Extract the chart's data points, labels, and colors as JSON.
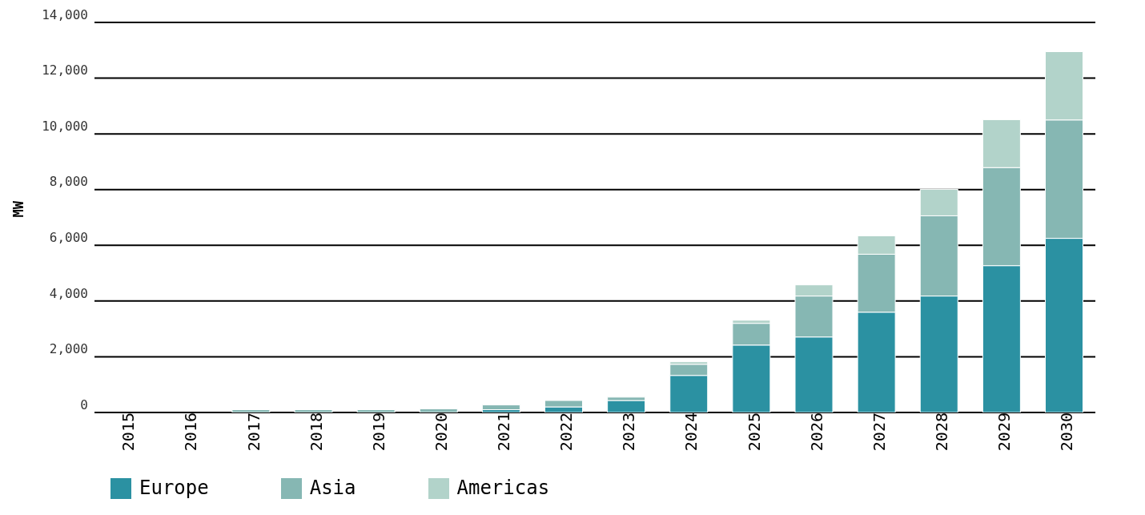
{
  "chart_data": {
    "type": "bar",
    "stacked": true,
    "ylabel": "MW",
    "categories": [
      "2015",
      "2016",
      "2017",
      "2018",
      "2019",
      "2020",
      "2021",
      "2022",
      "2023",
      "2024",
      "2025",
      "2026",
      "2027",
      "2028",
      "2029",
      "2030"
    ],
    "series": [
      {
        "name": "Europe",
        "color": "#2b91a2",
        "values": [
          0,
          0,
          0,
          0,
          0,
          0,
          100,
          200,
          430,
          1330,
          2420,
          2710,
          3600,
          4180,
          5270,
          6250
        ]
      },
      {
        "name": "Asia",
        "color": "#86b7b3",
        "values": [
          0,
          0,
          100,
          100,
          100,
          130,
          170,
          230,
          120,
          400,
          780,
          1470,
          2080,
          2880,
          3520,
          4250
        ]
      },
      {
        "name": "Americas",
        "color": "#b2d3ca",
        "values": [
          0,
          0,
          0,
          0,
          0,
          0,
          0,
          0,
          0,
          90,
          110,
          400,
          660,
          950,
          1720,
          2450
        ]
      }
    ],
    "ylim": [
      0,
      14000
    ],
    "yticks": [
      0,
      {
        "value": 2000,
        "label": "2,000"
      },
      {
        "value": 4000,
        "label": "4,000"
      },
      {
        "value": 6000,
        "label": "6,000"
      },
      {
        "value": 8000,
        "label": "8,000"
      },
      {
        "value": 10000,
        "label": "10,000"
      },
      {
        "value": 12000,
        "label": "12,000"
      },
      {
        "value": 14000,
        "label": "14,000"
      }
    ],
    "grid": "y",
    "legend": "bottom"
  }
}
